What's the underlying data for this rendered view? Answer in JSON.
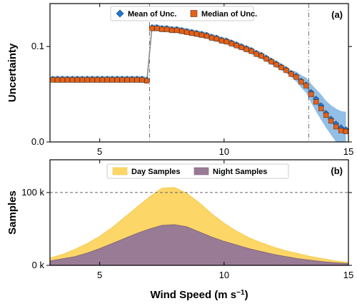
{
  "chart_data": [
    {
      "type": "line",
      "panel_label": "(a)",
      "ylabel": "Uncertainty",
      "xlim": [
        3,
        15
      ],
      "ylim": [
        0,
        0.145
      ],
      "x_ticks": [
        5,
        10,
        15
      ],
      "y_ticks": [
        0.0,
        0.1
      ],
      "y_tick_labels": [
        "0.0",
        "0.1"
      ],
      "vlines": [
        7.0,
        13.4
      ],
      "legend": {
        "placement": "top-center",
        "entries": [
          "Mean of Unc.",
          "Median of Unc."
        ]
      },
      "colors": {
        "mean_marker": "#1f77d4",
        "median_marker": "#e2621b",
        "band": "#6fa8dc",
        "line": "#808080"
      },
      "x": [
        3.1,
        3.3,
        3.5,
        3.7,
        3.9,
        4.1,
        4.3,
        4.5,
        4.7,
        4.9,
        5.1,
        5.3,
        5.5,
        5.7,
        5.9,
        6.1,
        6.3,
        6.5,
        6.7,
        6.9,
        7.1,
        7.3,
        7.5,
        7.7,
        7.9,
        8.1,
        8.3,
        8.5,
        8.7,
        8.9,
        9.1,
        9.3,
        9.5,
        9.7,
        9.9,
        10.1,
        10.3,
        10.5,
        10.7,
        10.9,
        11.1,
        11.3,
        11.5,
        11.7,
        11.9,
        12.1,
        12.3,
        12.5,
        12.7,
        12.9,
        13.1,
        13.3,
        13.5,
        13.7,
        13.9,
        14.1,
        14.3,
        14.5,
        14.7,
        14.9
      ],
      "series": [
        {
          "name": "Mean of Unc.",
          "marker": "diamond",
          "values": [
            0.066,
            0.066,
            0.066,
            0.066,
            0.066,
            0.066,
            0.066,
            0.066,
            0.066,
            0.066,
            0.066,
            0.066,
            0.066,
            0.066,
            0.066,
            0.066,
            0.066,
            0.066,
            0.066,
            0.065,
            0.12,
            0.12,
            0.119,
            0.119,
            0.118,
            0.118,
            0.117,
            0.116,
            0.115,
            0.114,
            0.113,
            0.112,
            0.11,
            0.109,
            0.107,
            0.106,
            0.104,
            0.102,
            0.1,
            0.098,
            0.096,
            0.093,
            0.091,
            0.088,
            0.085,
            0.082,
            0.079,
            0.076,
            0.072,
            0.069,
            0.064,
            0.06,
            0.052,
            0.045,
            0.038,
            0.03,
            0.024,
            0.019,
            0.015,
            0.013
          ]
        },
        {
          "name": "Median of Unc.",
          "marker": "square",
          "values": [
            0.065,
            0.065,
            0.065,
            0.065,
            0.065,
            0.065,
            0.065,
            0.065,
            0.065,
            0.065,
            0.065,
            0.065,
            0.065,
            0.065,
            0.065,
            0.065,
            0.065,
            0.065,
            0.065,
            0.064,
            0.119,
            0.119,
            0.118,
            0.118,
            0.117,
            0.117,
            0.116,
            0.115,
            0.114,
            0.113,
            0.112,
            0.111,
            0.109,
            0.108,
            0.106,
            0.105,
            0.103,
            0.101,
            0.099,
            0.097,
            0.095,
            0.092,
            0.09,
            0.087,
            0.084,
            0.081,
            0.078,
            0.075,
            0.071,
            0.068,
            0.063,
            0.059,
            0.05,
            0.042,
            0.035,
            0.028,
            0.022,
            0.016,
            0.012,
            0.011
          ]
        }
      ]
    },
    {
      "type": "area",
      "panel_label": "(b)",
      "xlabel": "Wind Speed (m s",
      "xlabel_sup": "−1",
      "xlabel_end": ")",
      "ylabel": "Samples",
      "xlim": [
        3,
        15
      ],
      "ylim": [
        0,
        145000
      ],
      "x_ticks": [
        5,
        10,
        15
      ],
      "y_ticks": [
        0,
        100000
      ],
      "y_tick_labels": [
        "0 k",
        "100 k"
      ],
      "hline": 100000,
      "legend": {
        "placement": "top-center",
        "entries": [
          "Day Samples",
          "Night Samples"
        ]
      },
      "colors": {
        "day": "#fcd667",
        "night": "#9a7b95",
        "day_edge": "#f3c542",
        "night_edge": "#7c5f7a"
      },
      "x": [
        3,
        3.5,
        4,
        4.5,
        5,
        5.5,
        6,
        6.5,
        7,
        7.5,
        8,
        8.5,
        9,
        9.5,
        10,
        10.5,
        11,
        11.5,
        12,
        12.5,
        13,
        13.5,
        14,
        14.5,
        15
      ],
      "series": [
        {
          "name": "Day Samples",
          "values": [
            10000,
            15000,
            22000,
            30000,
            40000,
            52000,
            66000,
            80000,
            94000,
            106000,
            107000,
            99000,
            86000,
            71000,
            58000,
            47000,
            38000,
            31000,
            25000,
            20000,
            16000,
            12000,
            9000,
            6000,
            4000
          ]
        },
        {
          "name": "Night Samples",
          "values": [
            6000,
            9000,
            12000,
            17000,
            23000,
            30000,
            37000,
            44000,
            50000,
            55000,
            56000,
            53000,
            46000,
            39000,
            33000,
            28000,
            23000,
            19000,
            15000,
            12000,
            9000,
            7000,
            5000,
            3500,
            2500
          ]
        }
      ]
    }
  ]
}
